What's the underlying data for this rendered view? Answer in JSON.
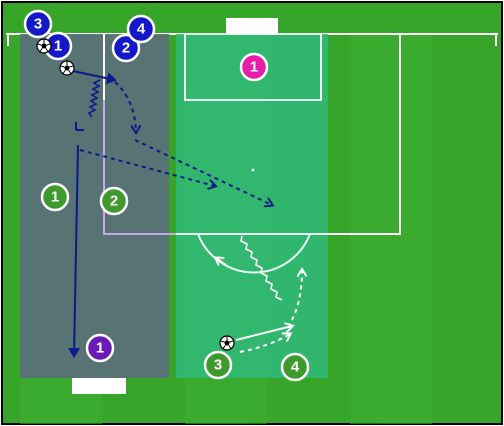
{
  "diagram": {
    "colors": {
      "grass": "#36a52a",
      "zone_grey": "#5a6f7a",
      "zone_teal": "#2fb97d",
      "line": "#ffffff",
      "blue_team": "#1418c8",
      "green_team": "#3f9a2e",
      "purple_player": "#6a1bb8",
      "pink_keeper": "#e61ea8",
      "blue_arrow": "#0d1a8a",
      "white_arrow": "#ffffff"
    },
    "players": [
      {
        "id": "blue-3",
        "label": "3",
        "team": "blue"
      },
      {
        "id": "blue-1",
        "label": "1",
        "team": "blue"
      },
      {
        "id": "blue-2",
        "label": "2",
        "team": "blue"
      },
      {
        "id": "blue-4",
        "label": "4",
        "team": "blue"
      },
      {
        "id": "green-1-left",
        "label": "1",
        "team": "green"
      },
      {
        "id": "green-2-left",
        "label": "2",
        "team": "green"
      },
      {
        "id": "purple-1",
        "label": "1",
        "team": "purple"
      },
      {
        "id": "pink-1",
        "label": "1",
        "team": "keeper"
      },
      {
        "id": "green-3",
        "label": "3",
        "team": "green"
      },
      {
        "id": "green-4",
        "label": "4",
        "team": "green"
      }
    ],
    "balls_count": 3,
    "arrows": {
      "blue_solid_passes": 2,
      "blue_dashed_runs": 3,
      "blue_dribbles": 1,
      "white_dribbles": 1,
      "white_solid_passes": 1,
      "white_dashed_runs": 2
    }
  }
}
